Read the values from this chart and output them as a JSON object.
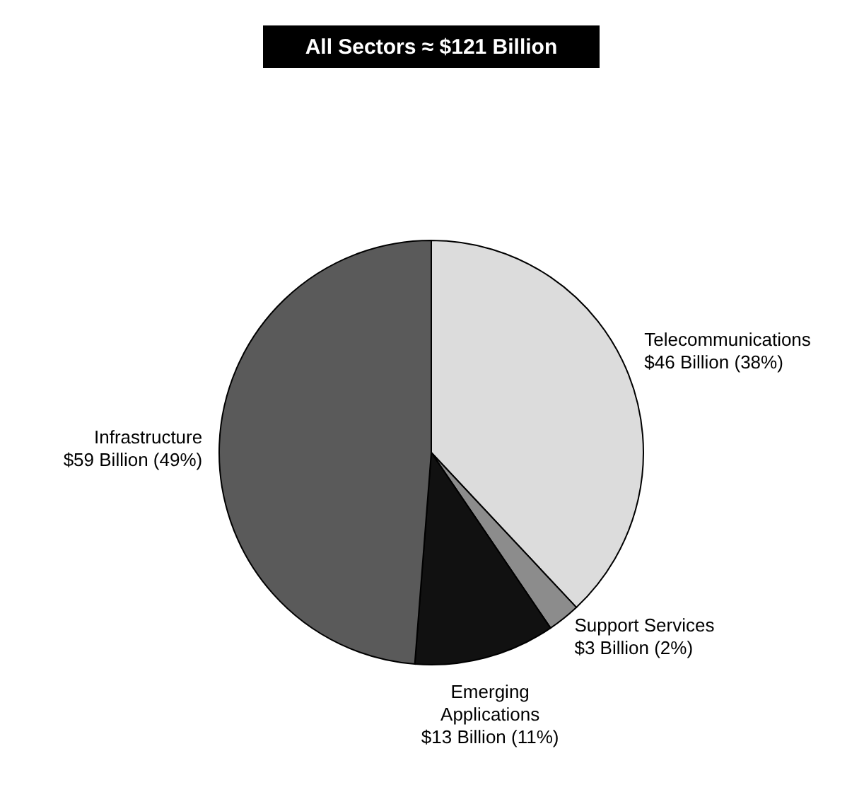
{
  "chart_data": {
    "type": "pie",
    "title": "All Sectors ≈ $121 Billion",
    "categories": [
      "Telecommunications",
      "Support Services",
      "Emerging Applications",
      "Infrastructure"
    ],
    "values": [
      46,
      3,
      13,
      59
    ],
    "value_labels": [
      "$46 Billion (38%)",
      "$3 Billion (2%)",
      "$13 Billion (11%)",
      "$59 Billion (49%)"
    ],
    "colors": [
      "#dcdcdc",
      "#8c8c8c",
      "#111111",
      "#5a5a5a"
    ]
  }
}
